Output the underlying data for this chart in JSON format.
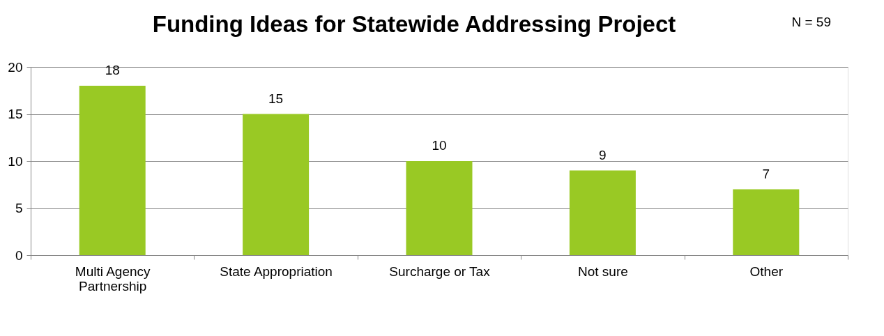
{
  "chart_data": {
    "type": "bar",
    "title": "Funding Ideas for Statewide Addressing Project",
    "annotations": [
      "N = 59"
    ],
    "categories": [
      "Multi Agency Partnership",
      "State Appropriation",
      "Surcharge or Tax",
      "Not sure",
      "Other"
    ],
    "values": [
      18,
      15,
      10,
      9,
      7
    ],
    "color": "#99c924",
    "ylim": [
      0,
      20
    ],
    "yticks": [
      0,
      5,
      10,
      15,
      20
    ],
    "grid": "y",
    "data_labels": true
  }
}
